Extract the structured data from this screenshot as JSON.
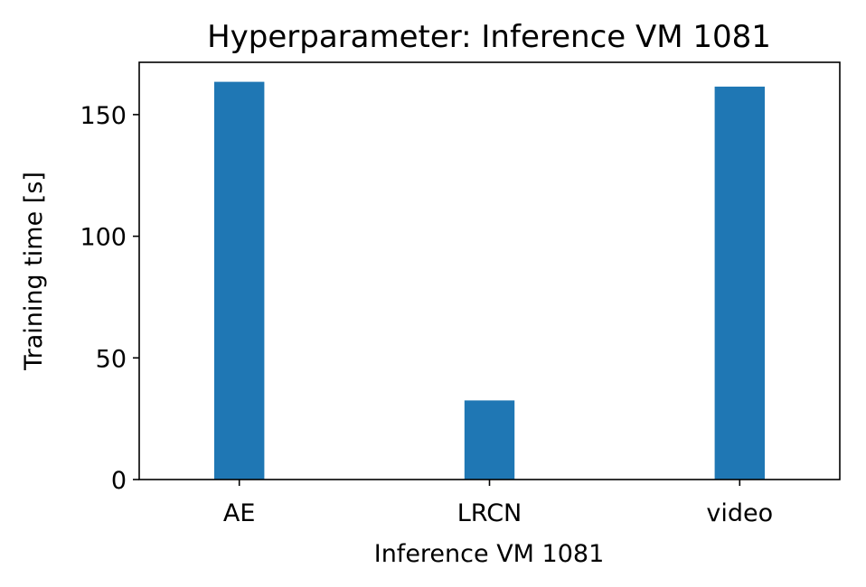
{
  "chart_data": {
    "type": "bar",
    "title": "Hyperparameter: Inference VM 1081",
    "xlabel": "Inference VM 1081",
    "ylabel": "Training time [s]",
    "categories": [
      "AE",
      "LRCN",
      "video"
    ],
    "values": [
      163.5,
      32.5,
      161.5
    ],
    "ylim": [
      0,
      171.5
    ],
    "yticks": [
      0,
      50,
      100,
      150
    ],
    "grid": false,
    "bar_color": "#1f77b4"
  }
}
